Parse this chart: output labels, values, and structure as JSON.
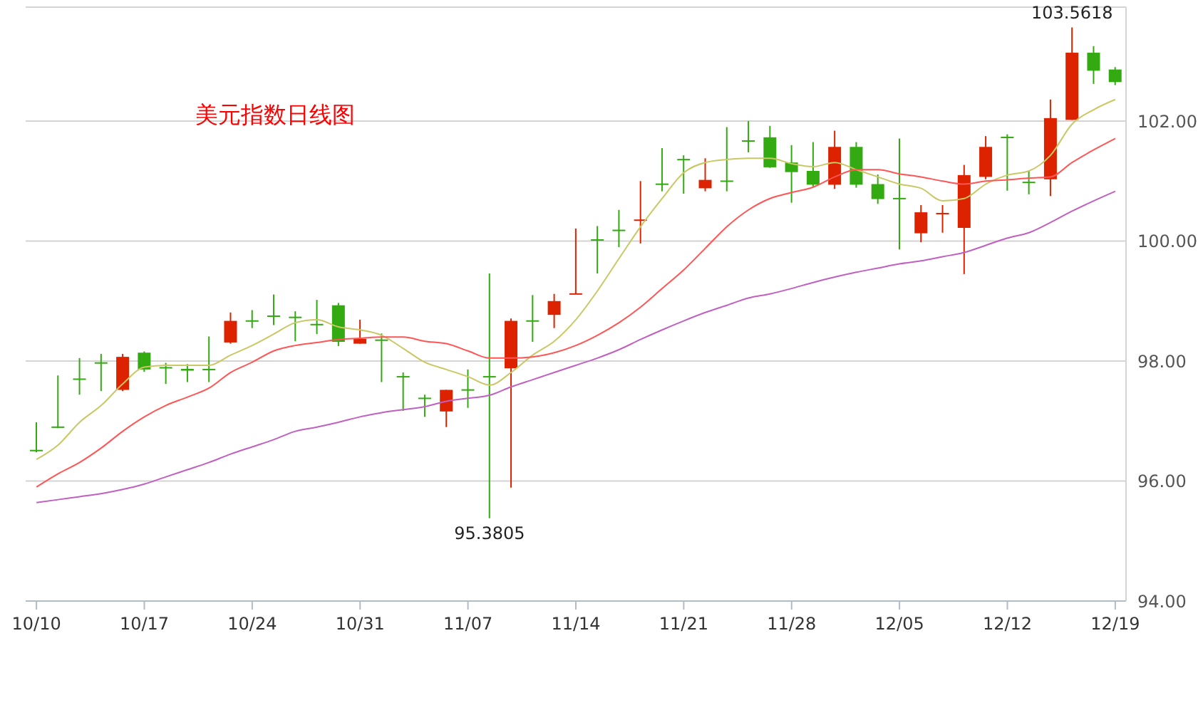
{
  "chart_data": {
    "type": "candlestick",
    "title": "美元指数日线图",
    "categories": [
      "10/10",
      null,
      null,
      null,
      null,
      "10/17",
      null,
      null,
      null,
      null,
      "10/24",
      null,
      null,
      null,
      null,
      "10/31",
      null,
      null,
      null,
      null,
      "11/07",
      null,
      null,
      null,
      null,
      "11/14",
      null,
      null,
      null,
      null,
      "11/21",
      null,
      null,
      null,
      null,
      "11/28",
      null,
      null,
      null,
      null,
      "12/05",
      null,
      null,
      null,
      null,
      "12/12",
      null,
      null,
      null,
      null,
      "12/19"
    ],
    "ohlc": [
      [
        96.52,
        96.98,
        96.48,
        96.5
      ],
      [
        96.91,
        97.76,
        96.88,
        96.9
      ],
      [
        97.71,
        98.05,
        97.44,
        97.7
      ],
      [
        97.98,
        98.12,
        97.5,
        97.97
      ],
      [
        97.52,
        98.12,
        97.5,
        98.07
      ],
      [
        98.14,
        98.16,
        97.82,
        97.86
      ],
      [
        97.9,
        97.97,
        97.62,
        97.89
      ],
      [
        97.87,
        97.95,
        97.65,
        97.84
      ],
      [
        97.87,
        98.41,
        97.65,
        97.86
      ],
      [
        98.31,
        98.81,
        98.29,
        98.67
      ],
      [
        98.68,
        98.85,
        98.55,
        98.67
      ],
      [
        98.76,
        99.11,
        98.6,
        98.75
      ],
      [
        98.74,
        98.83,
        98.33,
        98.73
      ],
      [
        98.62,
        99.02,
        98.45,
        98.61
      ],
      [
        98.93,
        98.97,
        98.25,
        98.32
      ],
      [
        98.29,
        98.69,
        98.29,
        98.37
      ],
      [
        98.36,
        98.46,
        97.65,
        98.35
      ],
      [
        97.75,
        97.81,
        97.17,
        97.74
      ],
      [
        97.39,
        97.44,
        97.07,
        97.38
      ],
      [
        97.16,
        97.52,
        96.9,
        97.52
      ],
      [
        97.53,
        97.86,
        97.22,
        97.52
      ],
      [
        97.75,
        99.46,
        95.3805,
        97.74
      ],
      [
        97.88,
        98.71,
        95.89,
        98.67
      ],
      [
        98.68,
        99.1,
        98.32,
        98.67
      ],
      [
        98.77,
        99.12,
        98.55,
        99.0
      ],
      [
        99.12,
        100.21,
        99.12,
        99.13
      ],
      [
        100.03,
        100.25,
        99.46,
        100.02
      ],
      [
        100.19,
        100.52,
        99.9,
        100.18
      ],
      [
        100.35,
        101.0,
        99.96,
        100.36
      ],
      [
        100.96,
        101.55,
        100.83,
        100.95
      ],
      [
        101.37,
        101.43,
        100.79,
        101.36
      ],
      [
        100.88,
        101.38,
        100.83,
        101.02
      ],
      [
        101.01,
        101.9,
        100.83,
        101.0
      ],
      [
        101.68,
        102.0,
        101.48,
        101.67
      ],
      [
        101.73,
        101.92,
        101.22,
        101.23
      ],
      [
        101.31,
        101.6,
        100.64,
        101.15
      ],
      [
        101.17,
        101.65,
        100.91,
        100.94
      ],
      [
        100.94,
        101.84,
        100.87,
        101.57
      ],
      [
        101.57,
        101.65,
        100.89,
        100.94
      ],
      [
        100.95,
        101.11,
        100.62,
        100.7
      ],
      [
        100.72,
        101.71,
        99.86,
        100.71
      ],
      [
        100.13,
        100.6,
        99.98,
        100.48
      ],
      [
        100.46,
        100.6,
        100.14,
        100.47
      ],
      [
        100.22,
        101.27,
        99.45,
        101.1
      ],
      [
        101.07,
        101.75,
        101.03,
        101.57
      ],
      [
        101.74,
        101.78,
        100.84,
        101.73
      ],
      [
        100.99,
        101.17,
        100.78,
        100.98
      ],
      [
        101.03,
        102.36,
        100.75,
        102.05
      ],
      [
        102.02,
        103.5618,
        102.02,
        103.14
      ],
      [
        103.14,
        103.25,
        102.62,
        102.84
      ],
      [
        102.86,
        102.9,
        102.6,
        102.65
      ]
    ],
    "colors": [
      "#33aa11",
      "#33aa11",
      "#33aa11",
      "#33aa11",
      "#dd2200",
      "#33aa11",
      "#33aa11",
      "#33aa11",
      "#33aa11",
      "#dd2200",
      "#33aa11",
      "#33aa11",
      "#33aa11",
      "#33aa11",
      "#33aa11",
      "#dd2200",
      "#33aa11",
      "#33aa11",
      "#33aa11",
      "#dd2200",
      "#33aa11",
      "#33aa11",
      "#dd2200",
      "#33aa11",
      "#dd2200",
      "#dd2200",
      "#33aa11",
      "#33aa11",
      "#dd2200",
      "#33aa11",
      "#33aa11",
      "#dd2200",
      "#33aa11",
      "#33aa11",
      "#33aa11",
      "#33aa11",
      "#33aa11",
      "#dd2200",
      "#33aa11",
      "#33aa11",
      "#33aa11",
      "#dd2200",
      "#dd2200",
      "#dd2200",
      "#dd2200",
      "#33aa11",
      "#33aa11",
      "#dd2200",
      "#dd2200",
      "#33aa11",
      "#33aa11"
    ],
    "series": [
      {
        "type": "line",
        "color": "#c8c864",
        "values": [
          96.36,
          96.6,
          96.98,
          97.26,
          97.62,
          97.9,
          97.93,
          97.93,
          97.93,
          98.1,
          98.26,
          98.45,
          98.64,
          98.69,
          98.57,
          98.52,
          98.43,
          98.21,
          97.98,
          97.86,
          97.74,
          97.6,
          97.81,
          98.1,
          98.33,
          98.69,
          99.17,
          99.71,
          100.24,
          100.71,
          101.14,
          101.31,
          101.36,
          101.38,
          101.38,
          101.29,
          101.24,
          101.31,
          101.19,
          101.07,
          100.95,
          100.88,
          100.67,
          100.71,
          100.95,
          101.1,
          101.17,
          101.43,
          101.95,
          102.19,
          102.36
        ]
      },
      {
        "type": "line",
        "color": "#ff5555",
        "values": [
          95.9,
          96.12,
          96.31,
          96.55,
          96.83,
          97.07,
          97.26,
          97.4,
          97.55,
          97.81,
          97.98,
          98.17,
          98.26,
          98.31,
          98.36,
          98.38,
          98.4,
          98.4,
          98.33,
          98.29,
          98.17,
          98.05,
          98.05,
          98.07,
          98.14,
          98.26,
          98.43,
          98.64,
          98.9,
          99.21,
          99.52,
          99.88,
          100.24,
          100.52,
          100.71,
          100.81,
          100.9,
          101.07,
          101.19,
          101.19,
          101.12,
          101.07,
          101.0,
          100.95,
          101.0,
          101.02,
          101.05,
          101.07,
          101.31,
          101.52,
          101.71
        ]
      },
      {
        "type": "line",
        "color": "#c060c0",
        "values": [
          95.64,
          95.69,
          95.74,
          95.79,
          95.86,
          95.95,
          96.07,
          96.19,
          96.31,
          96.45,
          96.57,
          96.69,
          96.83,
          96.9,
          96.98,
          97.07,
          97.14,
          97.19,
          97.24,
          97.33,
          97.38,
          97.43,
          97.57,
          97.69,
          97.81,
          97.93,
          98.05,
          98.19,
          98.36,
          98.52,
          98.67,
          98.81,
          98.93,
          99.05,
          99.12,
          99.21,
          99.31,
          99.4,
          99.48,
          99.55,
          99.62,
          99.67,
          99.74,
          99.81,
          99.93,
          100.05,
          100.14,
          100.31,
          100.5,
          100.67,
          100.83
        ]
      }
    ],
    "annotations": [
      {
        "text": "95.3805",
        "y": 95.3805
      },
      {
        "text": "103.5618",
        "y": 103.5618
      }
    ],
    "ylim": [
      94,
      103.9
    ],
    "yticks": [
      {
        "value": 94,
        "label": "94.00"
      },
      {
        "value": 96,
        "label": "96.00"
      },
      {
        "value": 98,
        "label": "98.00"
      },
      {
        "value": 100,
        "label": "100.00"
      },
      {
        "value": 102,
        "label": "102.00"
      }
    ],
    "grid": "y",
    "marker": "none",
    "line_style": "solid"
  }
}
